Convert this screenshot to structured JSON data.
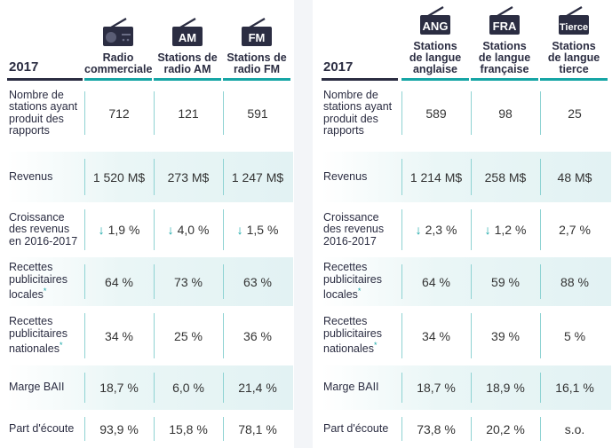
{
  "colors": {
    "navy": "#2b2d42",
    "teal": "#16a5a5",
    "arrow": "#16a7a7"
  },
  "left": {
    "year": "2017",
    "columns": [
      {
        "icon": "radio-icon",
        "badge": "",
        "label_1": "Radio",
        "label_2": "commerciale",
        "label_3": ""
      },
      {
        "icon": "am-radio-icon",
        "badge": "AM",
        "label_1": "Stations de",
        "label_2": "radio AM",
        "label_3": ""
      },
      {
        "icon": "fm-radio-icon",
        "badge": "FM",
        "label_1": "Stations de",
        "label_2": "radio FM",
        "label_3": ""
      }
    ],
    "rows": [
      {
        "label": "Nombre de stations ayant produit des rapports",
        "values": [
          "712",
          "121",
          "591"
        ],
        "arrows": [
          false,
          false,
          false
        ]
      },
      {
        "label": "Revenus",
        "values": [
          "1 520 M$",
          "273 M$",
          "1 247 M$"
        ],
        "arrows": [
          false,
          false,
          false
        ]
      },
      {
        "label": "Croissance des revenus en 2016-2017",
        "values": [
          "1,9 %",
          "4,0 %",
          "1,5 %"
        ],
        "arrows": [
          true,
          true,
          true
        ]
      },
      {
        "label": "Recettes publicitaires locales",
        "asterisk": "*",
        "values": [
          "64 %",
          "73 %",
          "63 %"
        ],
        "arrows": [
          false,
          false,
          false
        ]
      },
      {
        "label": "Recettes publicitaires nationales",
        "asterisk": "*",
        "values": [
          "34 %",
          "25 %",
          "36 %"
        ],
        "arrows": [
          false,
          false,
          false
        ]
      },
      {
        "label": "Marge BAII",
        "values": [
          "18,7 %",
          "6,0 %",
          "21,4 %"
        ],
        "arrows": [
          false,
          false,
          false
        ]
      },
      {
        "label": "Part d'écoute",
        "values": [
          "93,9 %",
          "15,8 %",
          "78,1 %"
        ],
        "arrows": [
          false,
          false,
          false
        ]
      }
    ]
  },
  "right": {
    "year": "2017",
    "columns": [
      {
        "icon": "ang-radio-icon",
        "badge": "ANG",
        "label_1": "Stations",
        "label_2": "de langue",
        "label_3": "anglaise"
      },
      {
        "icon": "fra-radio-icon",
        "badge": "FRA",
        "label_1": "Stations",
        "label_2": "de langue",
        "label_3": "française"
      },
      {
        "icon": "tierce-radio-icon",
        "badge": "Tierce",
        "label_1": "Stations",
        "label_2": "de langue",
        "label_3": "tierce"
      }
    ],
    "rows": [
      {
        "label": "Nombre de stations ayant produit des rapports",
        "values": [
          "589",
          "98",
          "25"
        ],
        "arrows": [
          false,
          false,
          false
        ]
      },
      {
        "label": "Revenus",
        "values": [
          "1 214  M$",
          "258 M$",
          "48 M$"
        ],
        "arrows": [
          false,
          false,
          false
        ]
      },
      {
        "label": "Croissance des revenus 2016-2017",
        "values": [
          "2,3 %",
          "1,2 %",
          "2,7 %"
        ],
        "arrows": [
          true,
          true,
          false
        ]
      },
      {
        "label": "Recettes publicitaires locales",
        "asterisk": "*",
        "values": [
          "64 %",
          "59 %",
          "88 %"
        ],
        "arrows": [
          false,
          false,
          false
        ]
      },
      {
        "label": "Recettes publicitaires nationales",
        "asterisk": "*",
        "values": [
          "34 %",
          "39 %",
          "5 %"
        ],
        "arrows": [
          false,
          false,
          false
        ]
      },
      {
        "label": "Marge BAII",
        "values": [
          "18,7 %",
          "18,9 %",
          "16,1 %"
        ],
        "arrows": [
          false,
          false,
          false
        ]
      },
      {
        "label": "Part d'écoute",
        "values": [
          "73,8 %",
          "20,2 %",
          "s.o."
        ],
        "arrows": [
          false,
          false,
          false
        ]
      }
    ]
  },
  "arrow_glyph": "↓"
}
